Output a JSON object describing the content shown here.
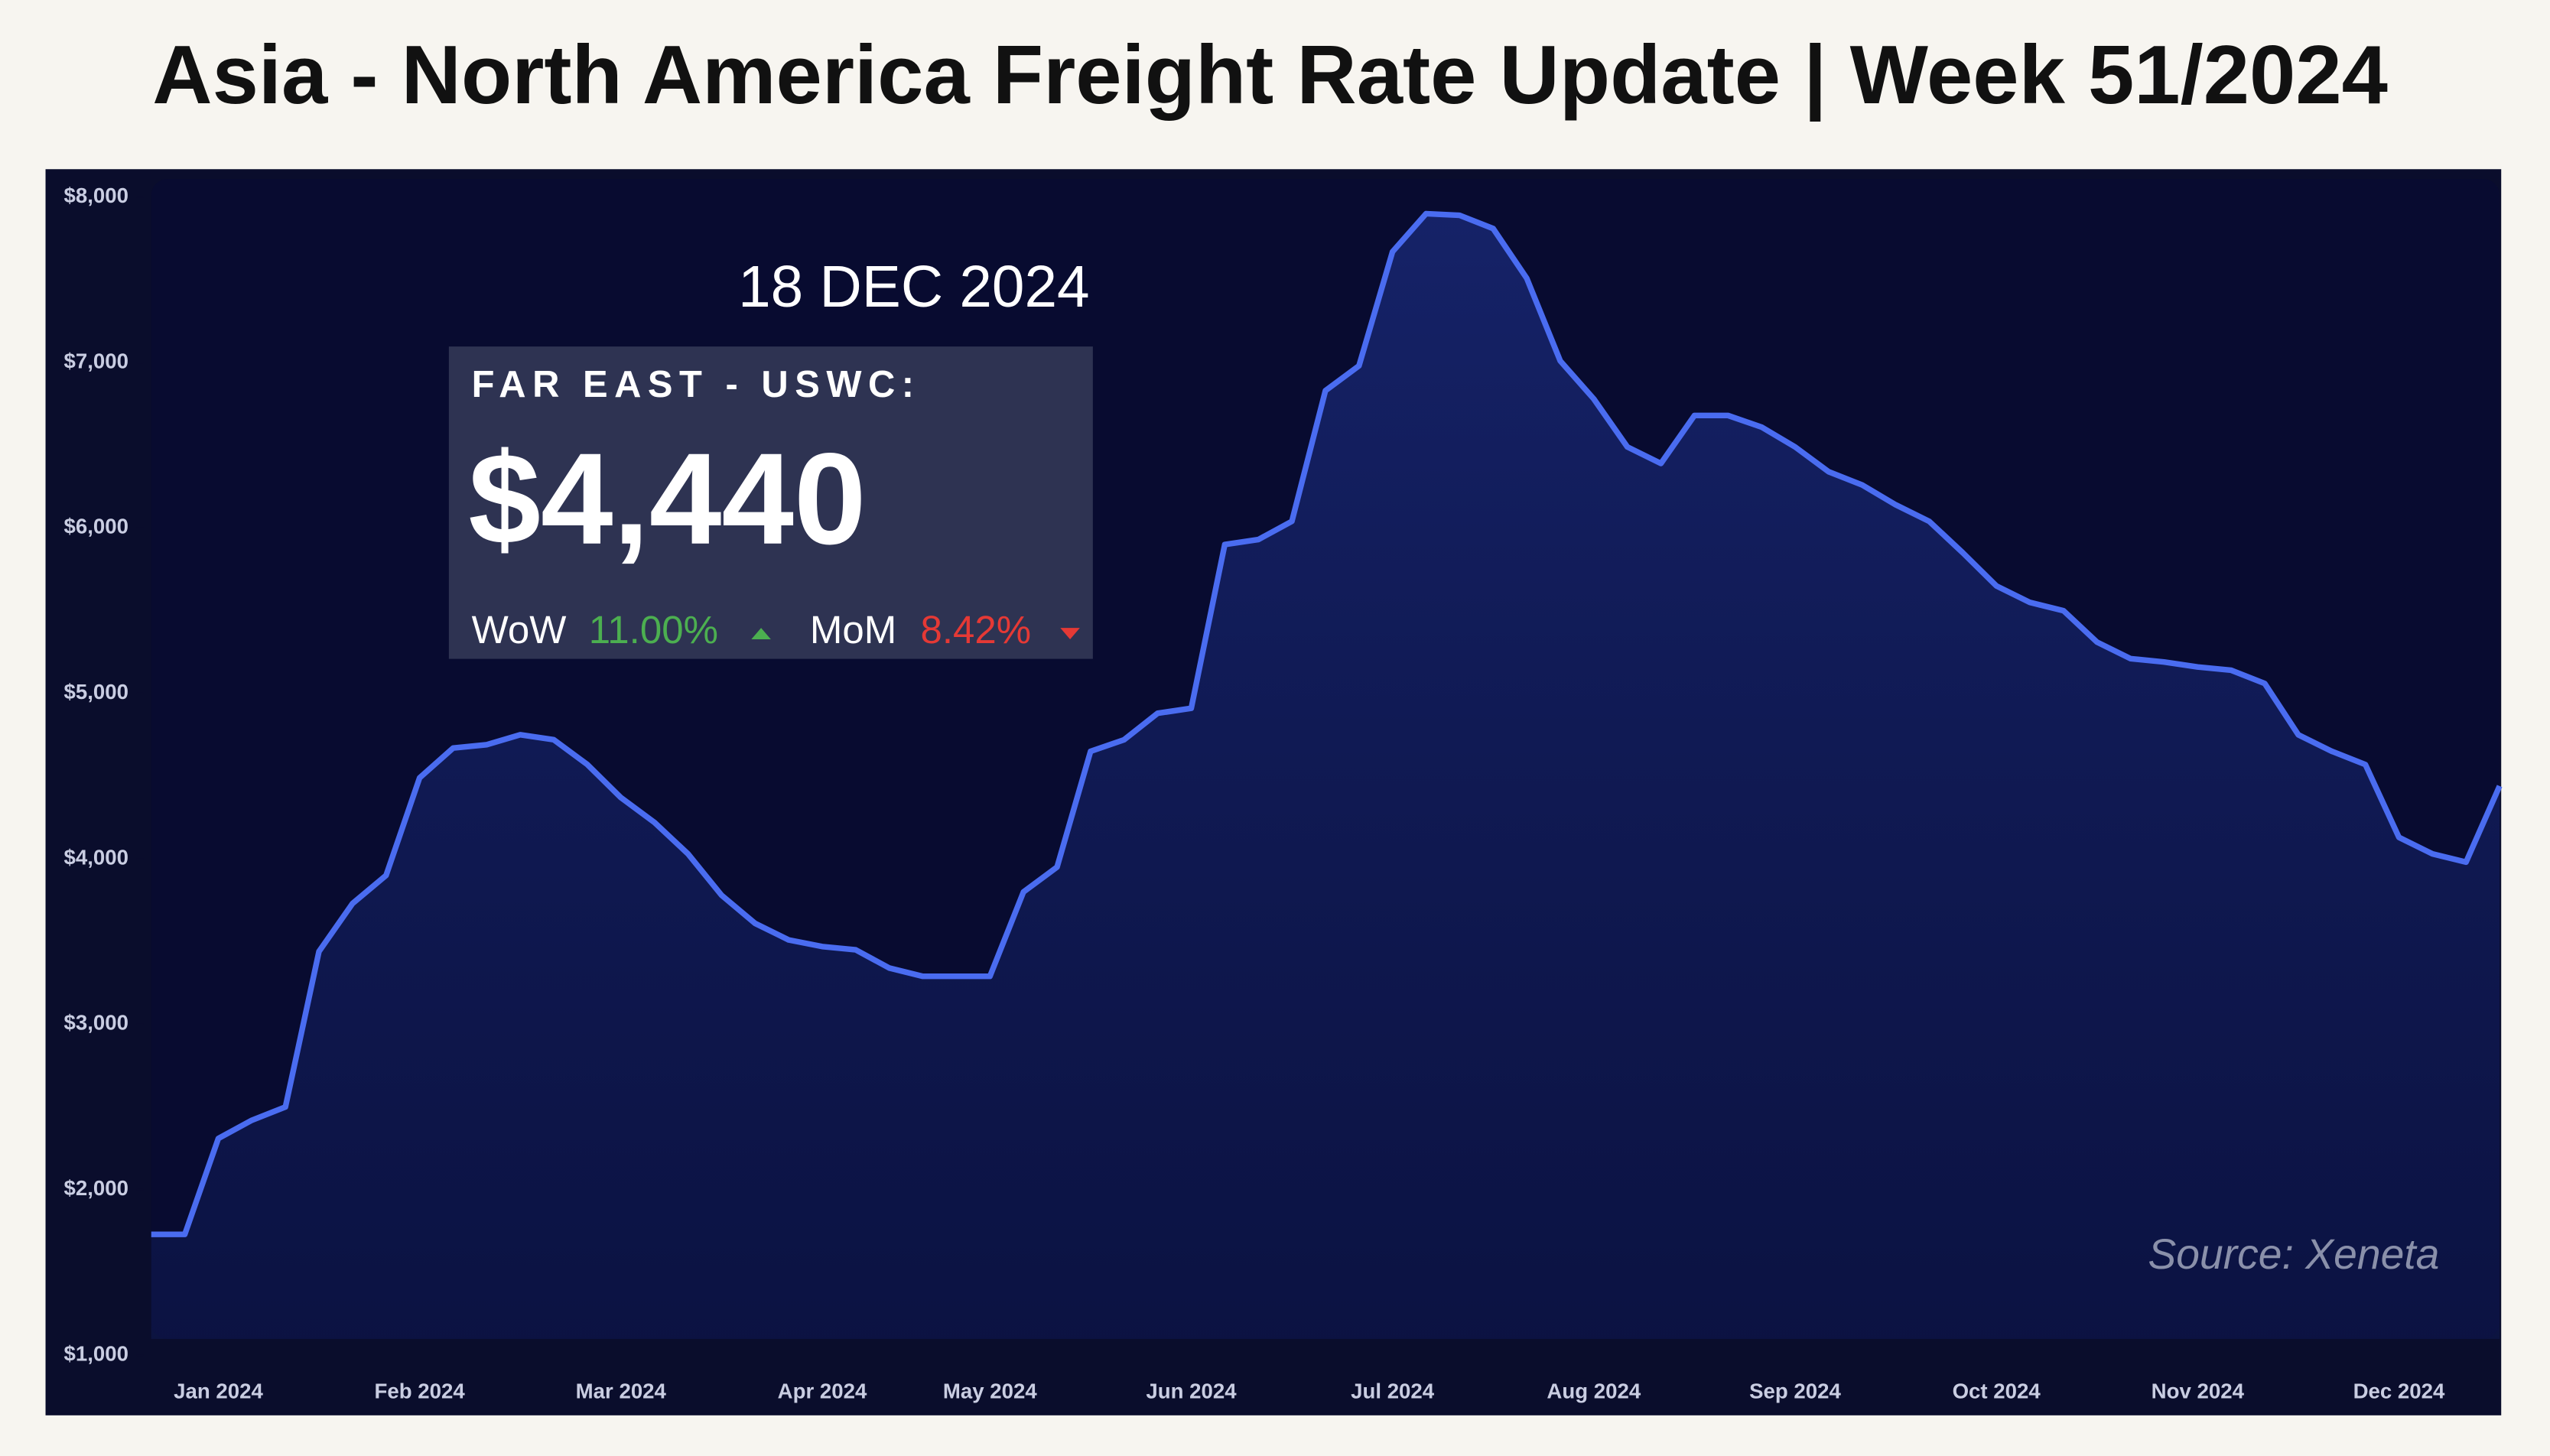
{
  "chart_data": {
    "type": "line",
    "title": "Asia - North America Freight Rate Update | Week 51/2024",
    "categories": [
      null,
      null,
      "Jan 2024",
      null,
      null,
      null,
      null,
      null,
      "Feb 2024",
      null,
      null,
      null,
      null,
      null,
      "Mar 2024",
      null,
      null,
      null,
      null,
      null,
      "Apr 2024",
      null,
      null,
      null,
      null,
      "May 2024",
      null,
      null,
      null,
      null,
      null,
      "Jun 2024",
      null,
      null,
      null,
      null,
      null,
      "Jul 2024",
      null,
      null,
      null,
      null,
      null,
      "Aug 2024",
      null,
      null,
      null,
      null,
      null,
      "Sep 2024",
      null,
      null,
      null,
      null,
      null,
      "Oct 2024",
      null,
      null,
      null,
      null,
      null,
      "Nov 2024",
      null,
      null,
      null,
      null,
      null,
      "Dec 2024",
      null,
      null,
      null
    ],
    "series": [
      {
        "color": "#4a6cf0",
        "values": [
          1730,
          1730,
          2310,
          2420,
          2500,
          3440,
          3730,
          3900,
          4490,
          4670,
          4690,
          4750,
          4720,
          4570,
          4370,
          4220,
          4030,
          3780,
          3610,
          3510,
          3470,
          3450,
          3340,
          3290,
          3290,
          3290,
          3800,
          3950,
          4650,
          4720,
          4880,
          4910,
          5900,
          5930,
          6040,
          6830,
          6980,
          7670,
          7900,
          7890,
          7810,
          7510,
          7010,
          6780,
          6490,
          6390,
          6680,
          6680,
          6610,
          6490,
          6340,
          6260,
          6140,
          6040,
          5850,
          5650,
          5550,
          5500,
          5310,
          5210,
          5190,
          5160,
          5140,
          5060,
          4750,
          4650,
          4570,
          4130,
          4030,
          3980,
          4440
        ]
      }
    ],
    "ylim": [
      1000,
      8100
    ],
    "yticks": [
      {
        "value": 1000,
        "label": "$1,000"
      },
      {
        "value": 2000,
        "label": "$2,000"
      },
      {
        "value": 3000,
        "label": "$3,000"
      },
      {
        "value": 4000,
        "label": "$4,000"
      },
      {
        "value": 5000,
        "label": "$5,000"
      },
      {
        "value": 6000,
        "label": "$6,000"
      },
      {
        "value": 7000,
        "label": "$7,000"
      },
      {
        "value": 8000,
        "label": "$8,000"
      }
    ],
    "grid": false,
    "card": {
      "date": "18 DEC 2024",
      "label": "FAR EAST - USWC:",
      "value": "$4,440",
      "wow_label": "WoW",
      "wow": "11.00%",
      "mom_label": "MoM",
      "mom": "8.42%"
    },
    "source": "Source: Xeneta"
  }
}
